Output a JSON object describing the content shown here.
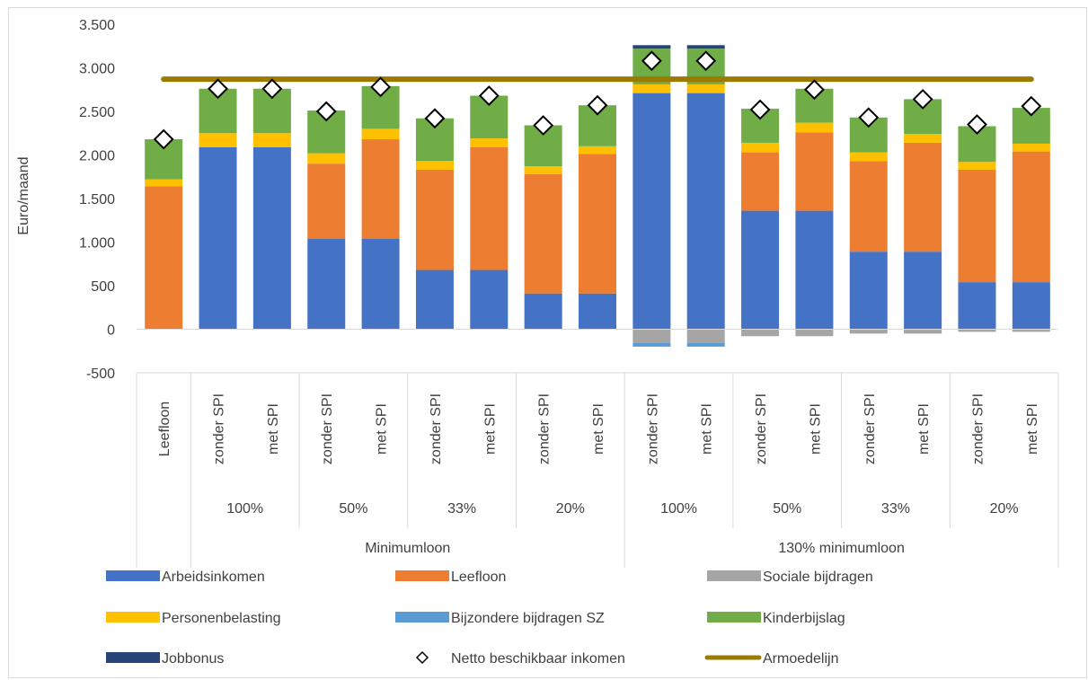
{
  "chart_data": {
    "type": "bar",
    "stacked": true,
    "title": "",
    "ylabel": "Euro/maand",
    "ylim": [
      -500,
      3500
    ],
    "yticks": [
      -500,
      0,
      500,
      1000,
      1500,
      2000,
      2500,
      3000,
      3500
    ],
    "ytick_labels": [
      "-500",
      "0",
      "500",
      "1.000",
      "1.500",
      "2.000",
      "2.500",
      "3.000",
      "3.500"
    ],
    "grid": false,
    "legend_position": "bottom",
    "categories": [
      "Leefloon",
      "zonder SPI",
      "met SPI",
      "zonder SPI",
      "met SPI",
      "zonder SPI",
      "met SPI",
      "zonder SPI",
      "met SPI",
      "zonder SPI",
      "met SPI",
      "zonder SPI",
      "met SPI",
      "zonder SPI",
      "met SPI",
      "zonder SPI",
      "met SPI"
    ],
    "category_groups": [
      {
        "label": "",
        "start": 0,
        "end": 0
      },
      {
        "label": "100%",
        "start": 1,
        "end": 2
      },
      {
        "label": "50%",
        "start": 3,
        "end": 4
      },
      {
        "label": "33%",
        "start": 5,
        "end": 6
      },
      {
        "label": "20%",
        "start": 7,
        "end": 8
      },
      {
        "label": "100%",
        "start": 9,
        "end": 10
      },
      {
        "label": "50%",
        "start": 11,
        "end": 12
      },
      {
        "label": "33%",
        "start": 13,
        "end": 14
      },
      {
        "label": "20%",
        "start": 15,
        "end": 16
      }
    ],
    "top_groups": [
      {
        "label": "",
        "start": 0,
        "end": 0
      },
      {
        "label": "Minimumloon",
        "start": 1,
        "end": 8
      },
      {
        "label": "130% minimumloon",
        "start": 9,
        "end": 16
      }
    ],
    "series": [
      {
        "name": "Arbeidsinkomen",
        "color": "#4472c4",
        "values": [
          0,
          2090,
          2090,
          1040,
          1040,
          680,
          680,
          410,
          410,
          2710,
          2710,
          1360,
          1360,
          890,
          890,
          540,
          540
        ]
      },
      {
        "name": "Leefloon",
        "color": "#ed7d31",
        "values": [
          1640,
          0,
          0,
          860,
          1140,
          1150,
          1410,
          1370,
          1600,
          0,
          0,
          670,
          900,
          1040,
          1250,
          1290,
          1500
        ]
      },
      {
        "name": "Sociale bijdragen",
        "color": "#a5a5a5",
        "values": [
          0,
          0,
          0,
          0,
          0,
          0,
          0,
          0,
          0,
          -160,
          -160,
          -80,
          -80,
          -50,
          -50,
          -30,
          -30
        ]
      },
      {
        "name": "Personenbelasting",
        "color": "#ffc000",
        "values": [
          80,
          160,
          160,
          120,
          120,
          100,
          100,
          90,
          90,
          100,
          100,
          110,
          110,
          100,
          100,
          90,
          90
        ]
      },
      {
        "name": "Bijzondere bijdragen SZ",
        "color": "#5b9bd5",
        "values": [
          0,
          0,
          0,
          0,
          0,
          0,
          0,
          0,
          0,
          -40,
          -40,
          0,
          0,
          0,
          0,
          0,
          0
        ]
      },
      {
        "name": "Kinderbijslag",
        "color": "#70ad47",
        "values": [
          460,
          510,
          510,
          490,
          490,
          490,
          490,
          470,
          470,
          410,
          410,
          390,
          390,
          400,
          400,
          410,
          410
        ]
      },
      {
        "name": "Jobbonus",
        "color": "#264478",
        "values": [
          0,
          0,
          0,
          0,
          0,
          0,
          0,
          0,
          0,
          40,
          40,
          0,
          0,
          0,
          0,
          0,
          0
        ]
      }
    ],
    "netto_series": {
      "name": "Netto beschikbaar inkomen",
      "values": [
        2180,
        2760,
        2760,
        2500,
        2780,
        2420,
        2680,
        2340,
        2570,
        3080,
        3080,
        2520,
        2750,
        2430,
        2640,
        2350,
        2560
      ]
    },
    "armoedelijn": {
      "name": "Armoedelijn",
      "value": 2870,
      "color": "#9b7a00"
    },
    "legend": [
      {
        "name": "Arbeidsinkomen",
        "marker": "box",
        "color": "#4472c4"
      },
      {
        "name": "Leefloon",
        "marker": "box",
        "color": "#ed7d31"
      },
      {
        "name": "Sociale bijdragen",
        "marker": "box",
        "color": "#a5a5a5"
      },
      {
        "name": "Personenbelasting",
        "marker": "box",
        "color": "#ffc000"
      },
      {
        "name": "Bijzondere bijdragen SZ",
        "marker": "box",
        "color": "#5b9bd5"
      },
      {
        "name": "Kinderbijslag",
        "marker": "box",
        "color": "#70ad47"
      },
      {
        "name": "Jobbonus",
        "marker": "box",
        "color": "#264478"
      },
      {
        "name": "Netto beschikbaar inkomen",
        "marker": "diamond",
        "color": "#000000"
      },
      {
        "name": "Armoedelijn",
        "marker": "line",
        "color": "#9b7a00"
      }
    ]
  }
}
